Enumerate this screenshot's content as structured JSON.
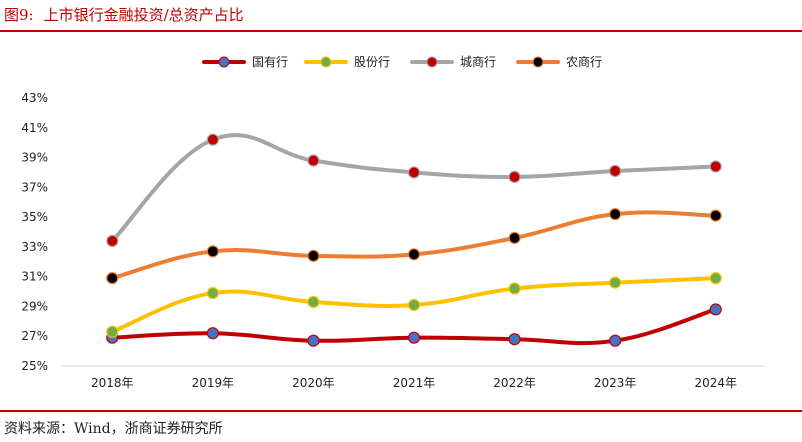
{
  "figure": {
    "number": "图9:",
    "title": "上市银行金融投资/总资产占比",
    "source": "资料来源：Wind，浙商证券研究所"
  },
  "chart_data": {
    "type": "line",
    "title": "上市银行金融投资/总资产占比",
    "xlabel": "",
    "ylabel": "",
    "categories": [
      "2018年",
      "2019年",
      "2020年",
      "2021年",
      "2022年",
      "2023年",
      "2024年"
    ],
    "ylim": [
      25,
      43
    ],
    "y_ticks": [
      25,
      27,
      29,
      31,
      33,
      35,
      37,
      39,
      41,
      43
    ],
    "y_tick_labels": [
      "25%",
      "27%",
      "29%",
      "31%",
      "33%",
      "35%",
      "37%",
      "39%",
      "41%",
      "43%"
    ],
    "legend_position": "top-center",
    "grid": false,
    "smooth": true,
    "series": [
      {
        "name": "国有行",
        "line_color": "#c00000",
        "marker_color": "#4472c4",
        "values": [
          26.9,
          27.2,
          26.7,
          26.9,
          26.8,
          26.7,
          28.8
        ]
      },
      {
        "name": "股份行",
        "line_color": "#ffc000",
        "marker_color": "#70ad47",
        "values": [
          27.3,
          29.9,
          29.3,
          29.1,
          30.2,
          30.6,
          30.9
        ]
      },
      {
        "name": "城商行",
        "line_color": "#a5a5a5",
        "marker_color": "#c00000",
        "values": [
          33.4,
          40.2,
          38.8,
          38.0,
          37.7,
          38.1,
          38.4
        ]
      },
      {
        "name": "农商行",
        "line_color": "#ed7d31",
        "marker_color": "#000000",
        "values": [
          30.9,
          32.7,
          32.4,
          32.5,
          33.6,
          35.2,
          35.1
        ]
      }
    ]
  }
}
